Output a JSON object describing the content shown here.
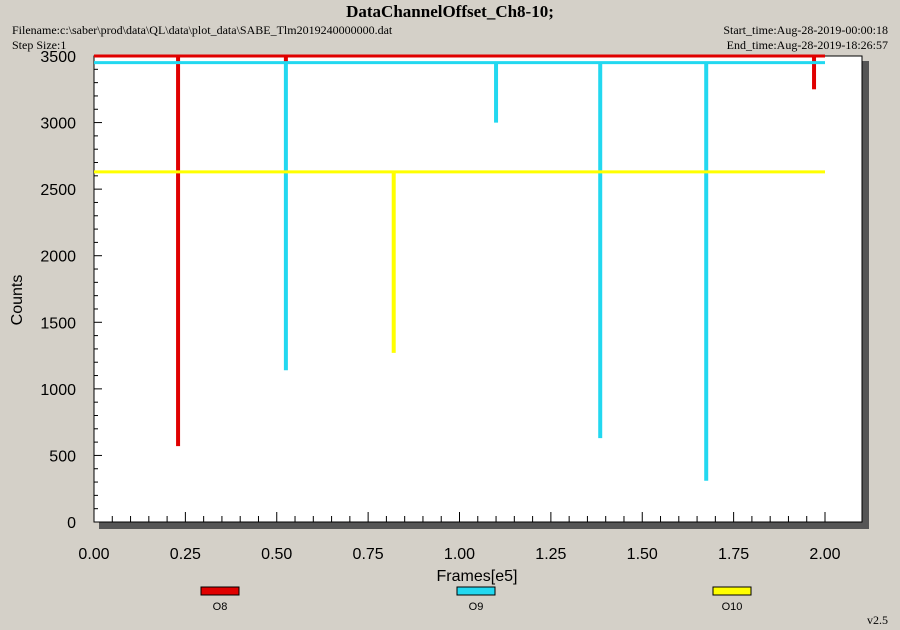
{
  "header": {
    "title": "DataChannelOffset_Ch8-10;",
    "filename": "Filename:c:\\saber\\prod\\data\\QL\\data\\plot_data\\SABE_Tlm2019240000000.dat",
    "step_size": "Step Size:1",
    "start_time": "Start_time:Aug-28-2019-00:00:18",
    "end_time": "End_time:Aug-28-2019-18:26:57"
  },
  "footer": {
    "version": "v2.5"
  },
  "colors": {
    "o8": "#e00000",
    "o9": "#22d8f0",
    "o10": "#ffff00",
    "background": "#d4d0c8",
    "plot_bg": "#ffffff"
  },
  "chart_data": {
    "type": "line",
    "xlabel": "Frames[e5]",
    "ylabel": "Counts",
    "xlim": [
      0,
      2.0
    ],
    "ylim": [
      0,
      3500
    ],
    "x_ticks": [
      "0.00",
      "0.25",
      "0.50",
      "0.75",
      "1.00",
      "1.25",
      "1.50",
      "1.75",
      "2.00"
    ],
    "y_ticks": [
      "0",
      "500",
      "1000",
      "1500",
      "2000",
      "2500",
      "3000",
      "3500"
    ],
    "grid": false,
    "legend_position": "bottom",
    "series": [
      {
        "name": "O8",
        "color": "#e00000",
        "baseline": 3500,
        "spikes": [
          {
            "x": 0.23,
            "y": 570
          },
          {
            "x": 0.525,
            "y": 3450
          },
          {
            "x": 1.97,
            "y": 3250
          }
        ]
      },
      {
        "name": "O9",
        "color": "#22d8f0",
        "baseline": 3450,
        "spikes": [
          {
            "x": 0.525,
            "y": 1140
          },
          {
            "x": 1.1,
            "y": 3000
          },
          {
            "x": 1.385,
            "y": 630
          },
          {
            "x": 1.675,
            "y": 310
          }
        ]
      },
      {
        "name": "O10",
        "color": "#ffff00",
        "baseline": 2630,
        "spikes": [
          {
            "x": 0.82,
            "y": 1270
          }
        ]
      }
    ]
  }
}
